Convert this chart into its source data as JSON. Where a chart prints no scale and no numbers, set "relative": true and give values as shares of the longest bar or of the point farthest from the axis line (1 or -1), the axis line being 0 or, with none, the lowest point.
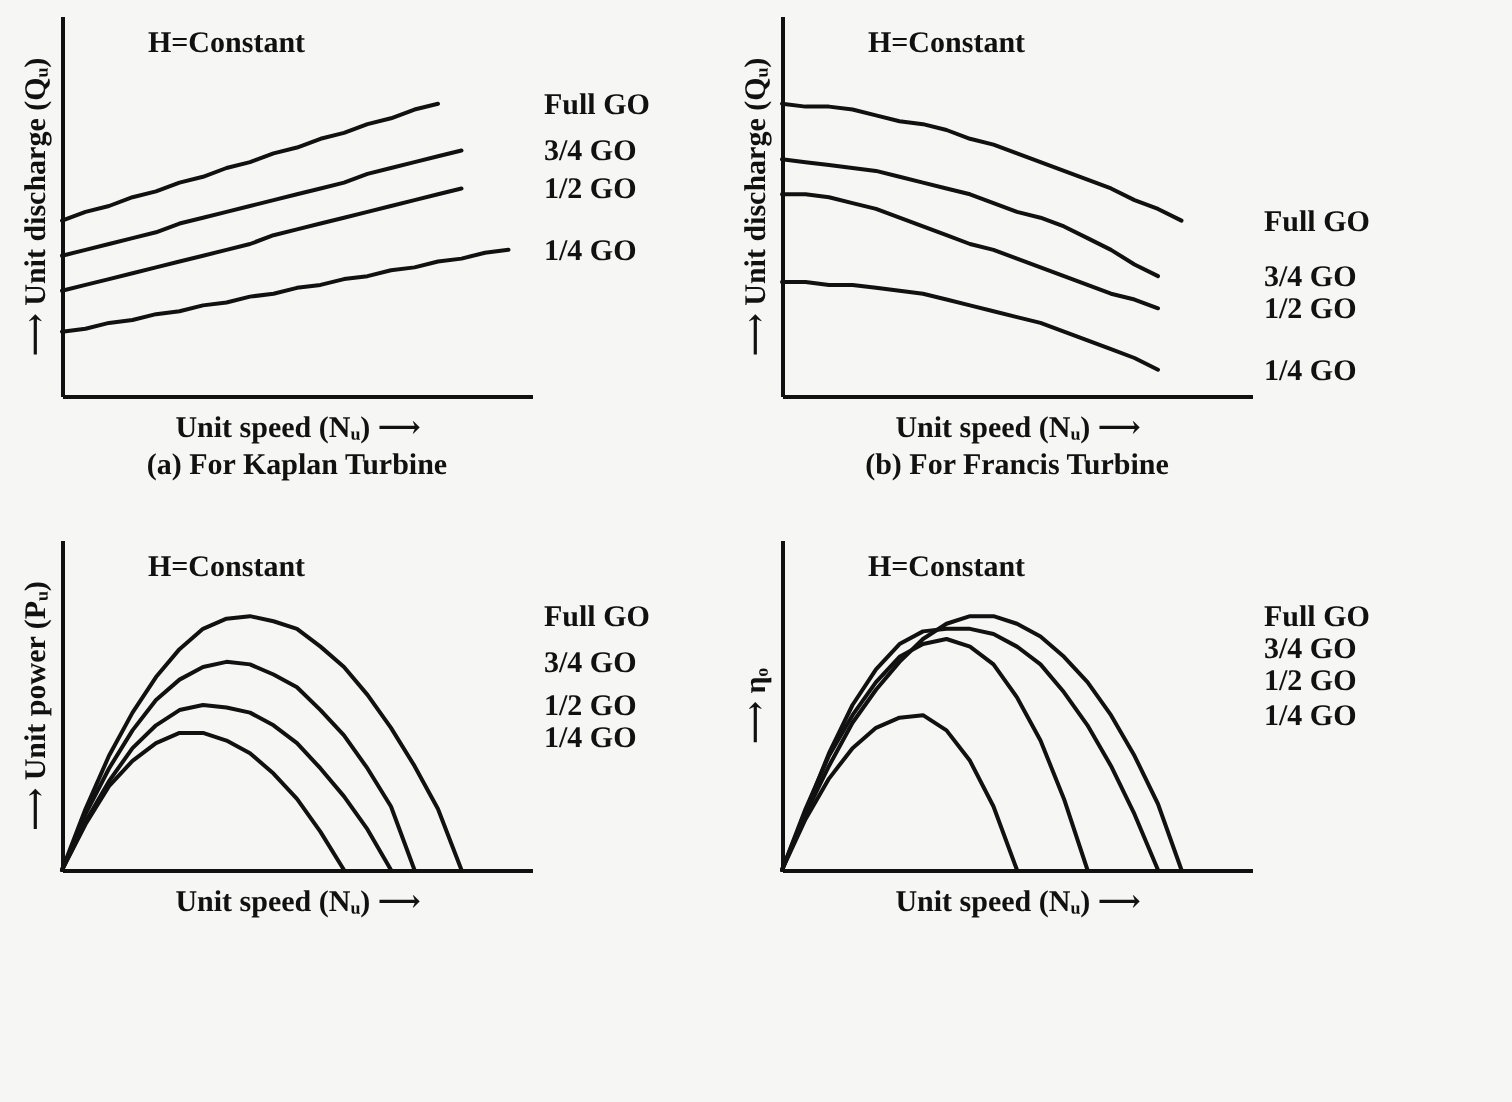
{
  "chart_data": [
    {
      "type": "line",
      "title": "(a) For Kaplan Turbine",
      "xlabel": "Unit speed (Nᵤ) ⟶",
      "ylabel": "⟶   Unit discharge (Qᵤ)",
      "annotations": [
        "H=Constant"
      ],
      "relative": true,
      "categories": [
        null,
        null,
        null,
        null,
        null,
        null,
        null,
        null,
        null,
        null,
        null,
        null,
        null,
        null,
        null,
        null,
        null,
        null,
        null,
        null,
        null
      ],
      "series": [
        {
          "name": "Full GO",
          "color": "#111111",
          "values": [
            0.6,
            0.63,
            0.65,
            0.68,
            0.7,
            0.73,
            0.75,
            0.78,
            0.8,
            0.83,
            0.85,
            0.88,
            0.9,
            0.93,
            0.95,
            0.98,
            1,
            null,
            null,
            null,
            null
          ]
        },
        {
          "name": "3/4 GO",
          "color": "#111111",
          "values": [
            0.48,
            0.5,
            0.52,
            0.54,
            0.56,
            0.59,
            0.61,
            0.63,
            0.65,
            0.67,
            0.69,
            0.71,
            0.73,
            0.76,
            0.78,
            0.8,
            0.82,
            0.84,
            null,
            null,
            null
          ]
        },
        {
          "name": "1/2 GO",
          "color": "#111111",
          "values": [
            0.36,
            0.38,
            0.4,
            0.42,
            0.44,
            0.46,
            0.48,
            0.5,
            0.52,
            0.55,
            0.57,
            0.59,
            0.61,
            0.63,
            0.65,
            0.67,
            0.69,
            0.71,
            null,
            null,
            null
          ]
        },
        {
          "name": "1/4 GO",
          "color": "#111111",
          "values": [
            0.22,
            0.23,
            0.25,
            0.26,
            0.28,
            0.29,
            0.31,
            0.32,
            0.34,
            0.35,
            0.37,
            0.38,
            0.4,
            0.41,
            0.43,
            0.44,
            0.46,
            0.47,
            0.49,
            0.5,
            null
          ]
        }
      ]
    },
    {
      "type": "line",
      "title": "(b) For Francis Turbine",
      "xlabel": "Unit speed (Nᵤ) ⟶",
      "ylabel": "⟶   Unit discharge (Qᵤ)",
      "annotations": [
        "H=Constant"
      ],
      "relative": true,
      "categories": [
        null,
        null,
        null,
        null,
        null,
        null,
        null,
        null,
        null,
        null,
        null,
        null,
        null,
        null,
        null,
        null,
        null,
        null,
        null,
        null,
        null
      ],
      "series": [
        {
          "name": "Full GO",
          "color": "#111111",
          "values": [
            1,
            0.99,
            0.99,
            0.98,
            0.96,
            0.94,
            0.93,
            0.91,
            0.88,
            0.86,
            0.83,
            0.8,
            0.77,
            0.74,
            0.71,
            0.67,
            0.64,
            0.6,
            null,
            null,
            null
          ]
        },
        {
          "name": "3/4 GO",
          "color": "#111111",
          "values": [
            0.81,
            0.8,
            0.79,
            0.78,
            0.77,
            0.75,
            0.73,
            0.71,
            0.69,
            0.66,
            0.63,
            0.61,
            0.58,
            0.54,
            0.5,
            0.45,
            0.41,
            null,
            null,
            null,
            null
          ]
        },
        {
          "name": "1/2 GO",
          "color": "#111111",
          "values": [
            0.69,
            0.69,
            0.68,
            0.66,
            0.64,
            0.61,
            0.58,
            0.55,
            0.52,
            0.5,
            0.47,
            0.44,
            0.41,
            0.38,
            0.35,
            0.33,
            0.3,
            null,
            null,
            null,
            null
          ]
        },
        {
          "name": "1/4 GO",
          "color": "#111111",
          "values": [
            0.39,
            0.39,
            0.38,
            0.38,
            0.37,
            0.36,
            0.35,
            0.33,
            0.31,
            0.29,
            0.27,
            0.25,
            0.22,
            0.19,
            0.16,
            0.13,
            0.09,
            null,
            null,
            null,
            null
          ]
        }
      ]
    },
    {
      "type": "line",
      "xlabel": "Unit speed (Nᵤ) ⟶",
      "ylabel": "⟶   Unit power (Pᵤ)",
      "annotations": [
        "H=Constant"
      ],
      "relative": true,
      "categories": [
        null,
        null,
        null,
        null,
        null,
        null,
        null,
        null,
        null,
        null,
        null,
        null,
        null,
        null,
        null,
        null,
        null,
        null,
        null,
        null,
        null
      ],
      "series": [
        {
          "name": "Full GO",
          "color": "#111111",
          "values": [
            0,
            0.24,
            0.45,
            0.62,
            0.76,
            0.87,
            0.95,
            0.99,
            1,
            0.98,
            0.95,
            0.88,
            0.8,
            0.69,
            0.56,
            0.41,
            0.24,
            0,
            null,
            null,
            null
          ]
        },
        {
          "name": "3/4 GO",
          "color": "#111111",
          "values": [
            0,
            0.22,
            0.4,
            0.55,
            0.67,
            0.75,
            0.8,
            0.82,
            0.81,
            0.77,
            0.72,
            0.63,
            0.53,
            0.4,
            0.25,
            0,
            null,
            null,
            null,
            null,
            null
          ]
        },
        {
          "name": "1/2 GO",
          "color": "#111111",
          "values": [
            0,
            0.19,
            0.35,
            0.48,
            0.57,
            0.63,
            0.65,
            0.64,
            0.62,
            0.57,
            0.5,
            0.4,
            0.29,
            0.16,
            0,
            null,
            null,
            null,
            null,
            null,
            null
          ]
        },
        {
          "name": "1/4 GO",
          "color": "#111111",
          "values": [
            0,
            0.18,
            0.33,
            0.43,
            0.5,
            0.54,
            0.54,
            0.51,
            0.46,
            0.38,
            0.28,
            0.15,
            0,
            null,
            null,
            null,
            null,
            null,
            null,
            null,
            null
          ]
        }
      ]
    },
    {
      "type": "line",
      "xlabel": "Unit speed (Nᵤ) ⟶",
      "ylabel": "⟶  ηₒ",
      "annotations": [
        "H=Constant"
      ],
      "relative": true,
      "categories": [
        null,
        null,
        null,
        null,
        null,
        null,
        null,
        null,
        null,
        null,
        null,
        null,
        null,
        null,
        null,
        null,
        null,
        null,
        null,
        null,
        null
      ],
      "series": [
        {
          "name": "Full GO",
          "color": "#111111",
          "values": [
            0,
            0.22,
            0.41,
            0.58,
            0.71,
            0.82,
            0.91,
            0.97,
            1,
            1,
            0.97,
            0.92,
            0.84,
            0.74,
            0.61,
            0.45,
            0.26,
            0,
            null,
            null,
            null
          ]
        },
        {
          "name": "3/4 GO",
          "color": "#111111",
          "values": [
            0,
            0.23,
            0.46,
            0.65,
            0.79,
            0.89,
            0.94,
            0.95,
            0.95,
            0.93,
            0.88,
            0.81,
            0.7,
            0.57,
            0.41,
            0.22,
            0,
            null,
            null,
            null,
            null
          ]
        },
        {
          "name": "1/2 GO",
          "color": "#111111",
          "values": [
            0,
            0.24,
            0.45,
            0.61,
            0.74,
            0.84,
            0.89,
            0.91,
            0.88,
            0.81,
            0.68,
            0.51,
            0.28,
            0,
            null,
            null,
            null,
            null,
            null,
            null,
            null
          ]
        },
        {
          "name": "1/4 GO",
          "color": "#111111",
          "values": [
            0,
            0.2,
            0.36,
            0.48,
            0.56,
            0.6,
            0.61,
            0.55,
            0.43,
            0.25,
            0,
            null,
            null,
            null,
            null,
            null,
            null,
            null,
            null,
            null,
            null
          ]
        }
      ]
    }
  ]
}
